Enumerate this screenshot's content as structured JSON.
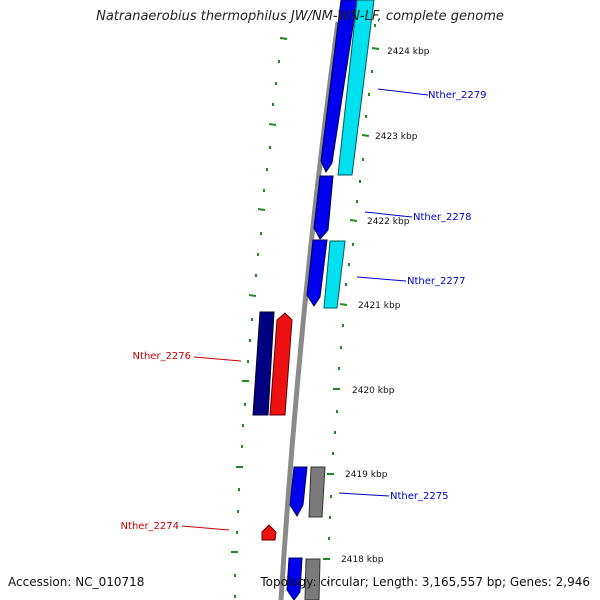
{
  "title": "Natranaerobius thermophilus JW/NM-WN-LF, complete genome",
  "footer": {
    "accession": "Accession: NC_010718",
    "summary": "Topology: circular; Length: 3,165,557 bp; Genes: 2,946"
  },
  "colors": {
    "backbone": "#8a8a8a",
    "tick": "#1e8c1e",
    "forward_cds": "#0000ee",
    "forward_cds_dark": "#000080",
    "forward_rna": "#00e0ee",
    "reverse_cds": "#ee1111",
    "neutral": "#7a7a7a",
    "label_blue": "#0000c8",
    "label_red": "#c80000"
  },
  "scale_labels": [
    "2424 kbp",
    "2423 kbp",
    "2422 kbp",
    "2421 kbp",
    "2420 kbp",
    "2419 kbp",
    "2418 kbp"
  ],
  "gene_labels": [
    {
      "text": "Nther_2279",
      "strand": "forward"
    },
    {
      "text": "Nther_2278",
      "strand": "forward"
    },
    {
      "text": "Nther_2277",
      "strand": "forward"
    },
    {
      "text": "Nther_2276",
      "strand": "reverse"
    },
    {
      "text": "Nther_2275",
      "strand": "forward"
    },
    {
      "text": "Nther_2274",
      "strand": "reverse"
    }
  ]
}
